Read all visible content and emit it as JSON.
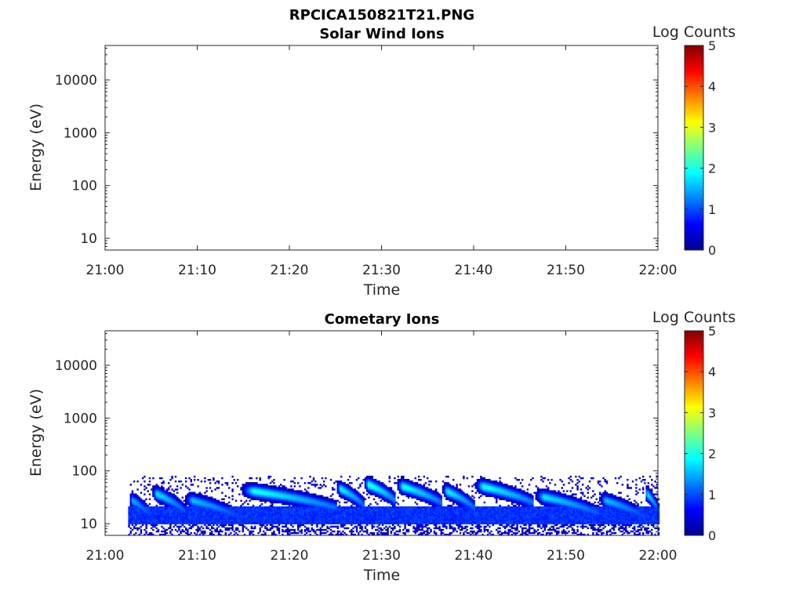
{
  "figure_title": "RPCICA150821T21.PNG",
  "colormap": "jet",
  "chart_data": [
    {
      "type": "heatmap",
      "title": "Solar Wind Ions",
      "xlabel": "Time",
      "ylabel": "Energy (eV)",
      "x_ticks": [
        "21:00",
        "21:10",
        "21:20",
        "21:30",
        "21:40",
        "21:50",
        "22:00"
      ],
      "x_range_minutes": [
        0,
        60
      ],
      "y_scale": "log",
      "y_ticks": [
        "10",
        "100",
        "1000",
        "10000"
      ],
      "y_range_ev": [
        6,
        45000
      ],
      "colorbar": {
        "label": "Log Counts",
        "ticks": [
          "0",
          "1",
          "2",
          "3",
          "4",
          "5"
        ],
        "range": [
          0,
          5
        ]
      },
      "grid": false,
      "data": []
    },
    {
      "type": "heatmap",
      "title": "Cometary Ions",
      "xlabel": "Time",
      "ylabel": "Energy (eV)",
      "x_ticks": [
        "21:00",
        "21:10",
        "21:20",
        "21:30",
        "21:40",
        "21:50",
        "22:00"
      ],
      "x_range_minutes": [
        0,
        60
      ],
      "y_scale": "log",
      "y_ticks": [
        "10",
        "100",
        "1000",
        "10000"
      ],
      "y_range_ev": [
        6,
        45000
      ],
      "colorbar": {
        "label": "Log Counts",
        "ticks": [
          "0",
          "1",
          "2",
          "3",
          "4",
          "5"
        ],
        "range": [
          0,
          5
        ]
      },
      "grid": false,
      "data_start_minute": 2.5,
      "noise_ceiling_ev": 80,
      "base_band_ev": [
        10,
        22
      ],
      "background_log_counts": 0.7,
      "events": [
        {
          "start_minute": 2.5,
          "end_minute": 5,
          "peak_ev": 30,
          "peak_log_counts": 1.5
        },
        {
          "start_minute": 5,
          "end_minute": 8.5,
          "peak_ev": 40,
          "peak_log_counts": 1.8
        },
        {
          "start_minute": 8.5,
          "end_minute": 14.5,
          "peak_ev": 30,
          "peak_log_counts": 1.6
        },
        {
          "start_minute": 14.5,
          "end_minute": 25,
          "peak_ev": 45,
          "peak_log_counts": 2.0
        },
        {
          "start_minute": 25,
          "end_minute": 28,
          "peak_ev": 50,
          "peak_log_counts": 1.9
        },
        {
          "start_minute": 28,
          "end_minute": 31.5,
          "peak_ev": 60,
          "peak_log_counts": 2.1
        },
        {
          "start_minute": 31.5,
          "end_minute": 36.5,
          "peak_ev": 55,
          "peak_log_counts": 2.0
        },
        {
          "start_minute": 36.5,
          "end_minute": 40,
          "peak_ev": 45,
          "peak_log_counts": 1.9
        },
        {
          "start_minute": 40,
          "end_minute": 46.5,
          "peak_ev": 55,
          "peak_log_counts": 2.0
        },
        {
          "start_minute": 46.5,
          "end_minute": 53.5,
          "peak_ev": 35,
          "peak_log_counts": 1.8
        },
        {
          "start_minute": 53.5,
          "end_minute": 58.5,
          "peak_ev": 30,
          "peak_log_counts": 1.6
        },
        {
          "start_minute": 58.5,
          "end_minute": 60,
          "peak_ev": 40,
          "peak_log_counts": 1.8
        }
      ]
    }
  ]
}
